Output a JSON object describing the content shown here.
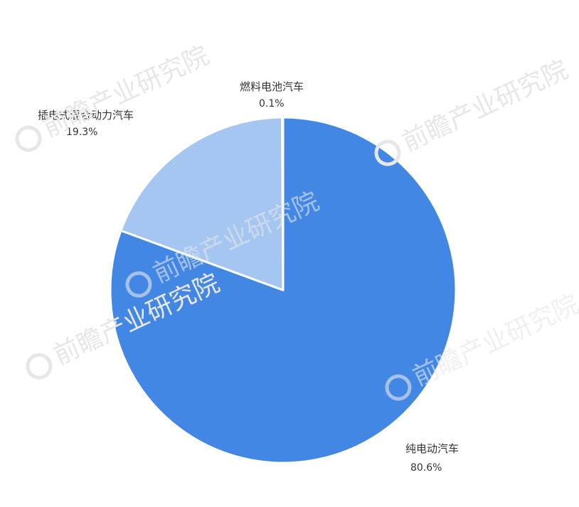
{
  "chart_data": {
    "type": "pie",
    "start_angle_deg": 0,
    "direction": "clockwise",
    "slices": [
      {
        "label": "纯电动汽车",
        "value": 80.6,
        "value_label": "80.6%",
        "color": "#4287e3"
      },
      {
        "label": "插电式混合动力汽车",
        "value": 19.3,
        "value_label": "19.3%",
        "color": "#a4c6f1"
      },
      {
        "label": "燃料电池汽车",
        "value": 0.1,
        "value_label": "0.1%",
        "color": "#3c63b8"
      }
    ]
  },
  "watermark": {
    "text": "前瞻产业研究院",
    "color": "#e7e7e7"
  }
}
